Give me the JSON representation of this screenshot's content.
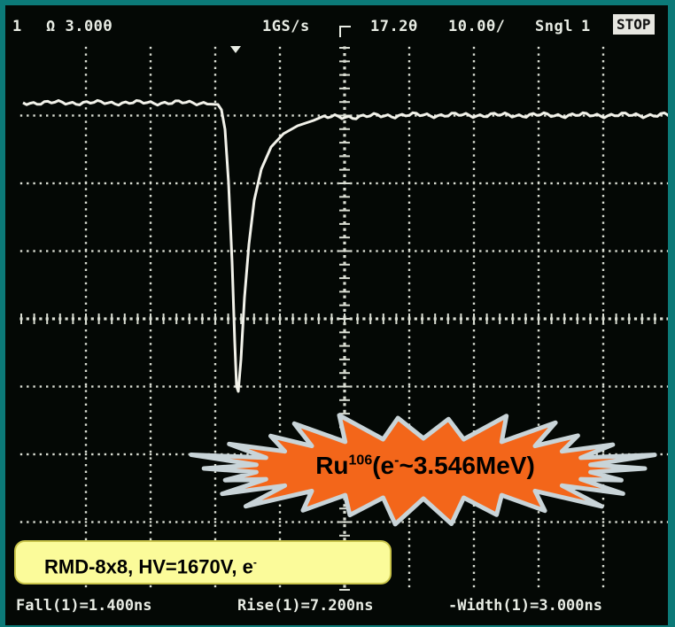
{
  "scope": {
    "channel": "1",
    "scale": "Ω 3.00θ",
    "sample_rate": "1GS/s",
    "trigger": "17.2θ",
    "timebase": "10.0θ/",
    "acq_mode": "Sngl",
    "acq_count": "1",
    "run_state": "STOP"
  },
  "measurements": {
    "fall": "Fall(1)=1.400ns",
    "rise": "Rise(1)=7.200ns",
    "width": "-Width(1)=3.000ns"
  },
  "burst": {
    "prefix": "Ru",
    "superscript": "106",
    "body_open": "(e",
    "charge": "-",
    "body_rest": "~3.546MeV)"
  },
  "info": {
    "text": "RMD-8x8,  HV=1670V, e",
    "charge": "-"
  },
  "colors": {
    "frame": "#0c7a78",
    "screen": "#040805",
    "trace": "#f2f2ea",
    "burst": "#f3661a",
    "burst_edge": "#c9d4d8",
    "info_box": "#fbfb9a"
  }
}
